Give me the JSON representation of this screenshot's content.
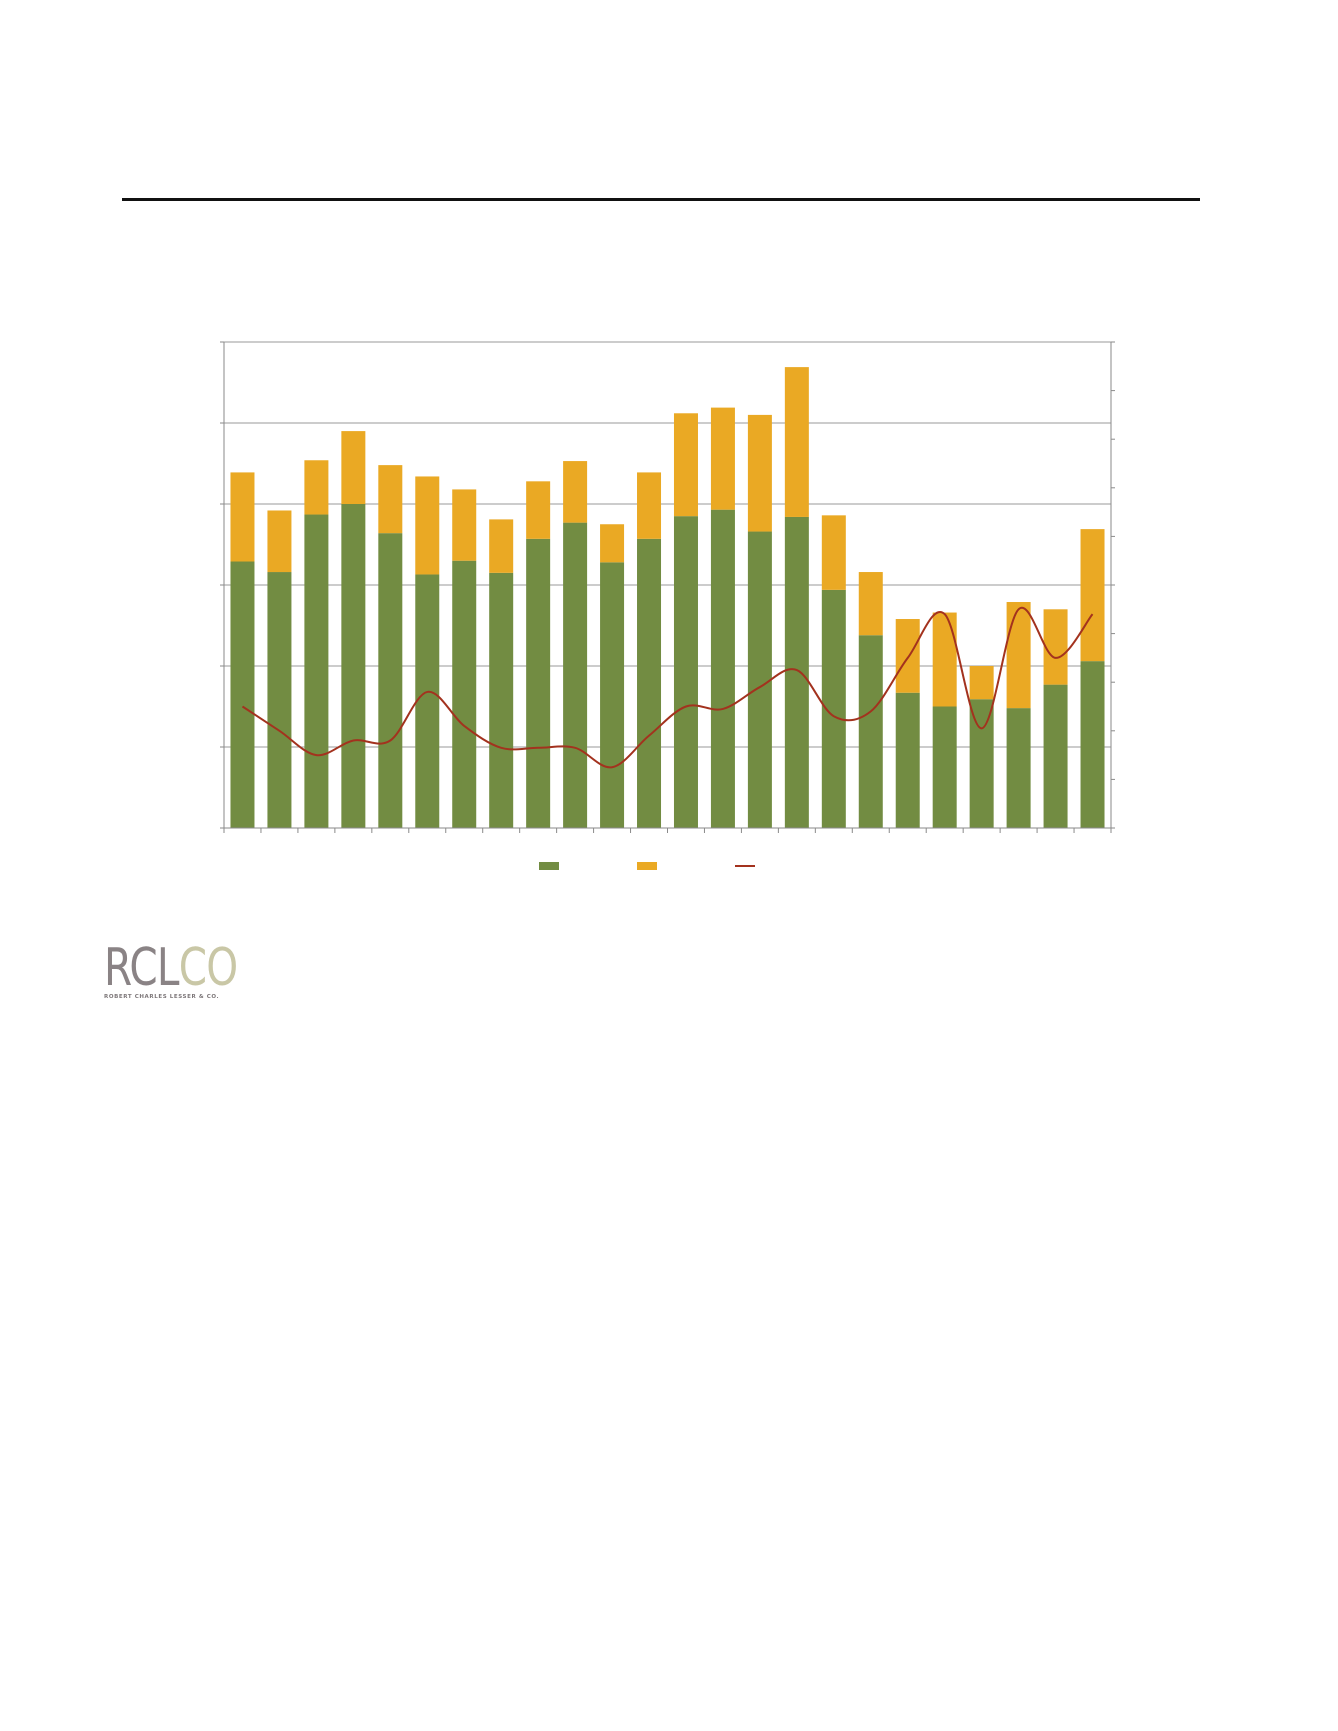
{
  "logo": {
    "part_a": "RCL",
    "part_b": "CO",
    "subtitle": "ROBERT CHARLES LESSER & CO."
  },
  "chart_data": {
    "type": "bar",
    "stacked": true,
    "grid": true,
    "legend": "bottom-center",
    "categories_count": 24,
    "ylim": [
      0,
      6
    ],
    "y2lim": [
      0,
      10
    ],
    "series": [
      {
        "kind": "bar",
        "color": "#728c42",
        "values": [
          3.29,
          3.16,
          3.87,
          4.0,
          3.64,
          3.13,
          3.3,
          3.15,
          3.57,
          3.77,
          3.28,
          3.57,
          3.85,
          3.93,
          3.66,
          3.84,
          2.94,
          2.38,
          1.67,
          1.5,
          1.59,
          1.48,
          1.77,
          2.06
        ]
      },
      {
        "kind": "bar",
        "color": "#eaa924",
        "values": [
          1.1,
          0.76,
          0.67,
          0.9,
          0.84,
          1.21,
          0.88,
          0.66,
          0.71,
          0.76,
          0.47,
          0.82,
          1.27,
          1.26,
          1.44,
          1.85,
          0.92,
          0.78,
          0.91,
          1.16,
          0.41,
          1.31,
          0.93,
          1.63
        ]
      },
      {
        "kind": "line",
        "axis": "secondary",
        "color": "#a3321e",
        "values": [
          2.5,
          2.0,
          1.5,
          1.8,
          1.8,
          2.8,
          2.1,
          1.65,
          1.65,
          1.65,
          1.25,
          1.9,
          2.5,
          2.45,
          2.9,
          3.25,
          2.3,
          2.4,
          3.5,
          4.4,
          2.05,
          4.5,
          3.5,
          4.4
        ]
      }
    ]
  }
}
